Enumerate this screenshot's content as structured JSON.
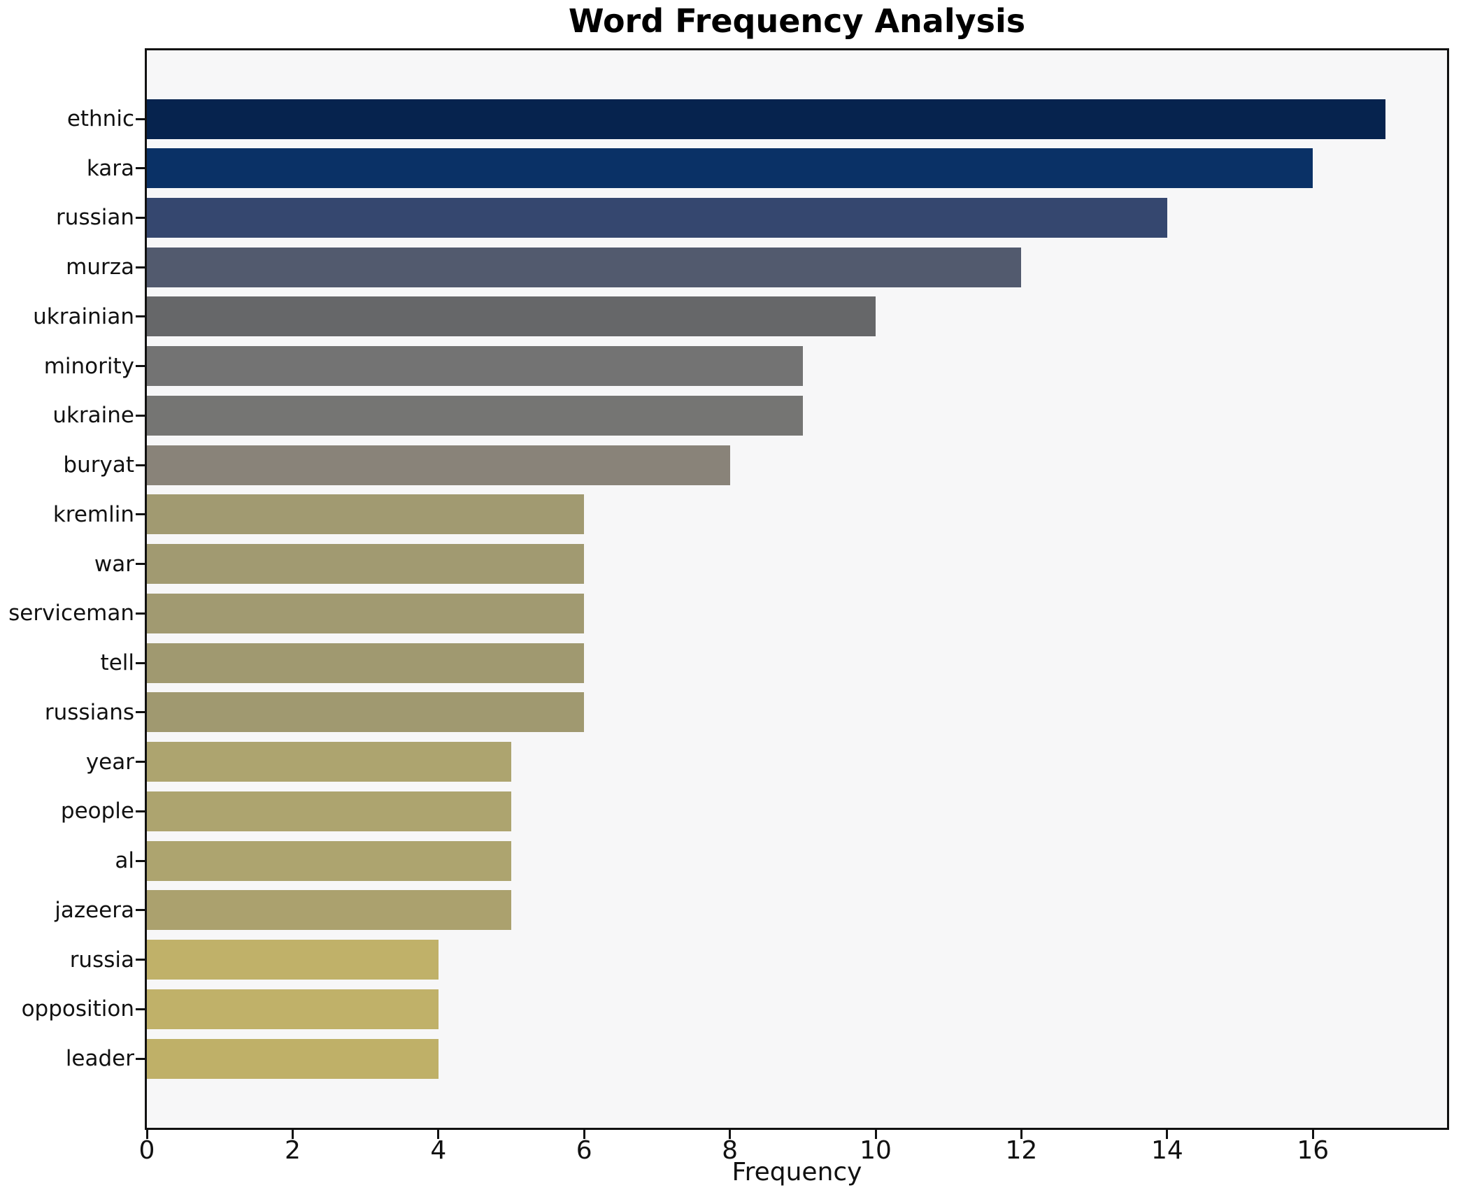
{
  "chart_data": {
    "type": "bar",
    "orientation": "horizontal",
    "title": "Word Frequency Analysis",
    "xlabel": "Frequency",
    "ylabel": "",
    "categories": [
      "ethnic",
      "kara",
      "russian",
      "murza",
      "ukrainian",
      "minority",
      "ukraine",
      "buryat",
      "kremlin",
      "war",
      "serviceman",
      "tell",
      "russians",
      "year",
      "people",
      "al",
      "jazeera",
      "russia",
      "opposition",
      "leader"
    ],
    "values": [
      17,
      16,
      14,
      12,
      10,
      9,
      9,
      8,
      6,
      6,
      6,
      6,
      6,
      5,
      5,
      5,
      5,
      4,
      4,
      4
    ],
    "bar_colors": [
      "#06234e",
      "#0a3166",
      "#35476f",
      "#525a6e",
      "#666769",
      "#737373",
      "#757573",
      "#898379",
      "#a19a71",
      "#a19a71",
      "#a19a71",
      "#a09970",
      "#a09970",
      "#ada46f",
      "#ada46f",
      "#ada46f",
      "#aba16e",
      "#c0b169",
      "#c0b169",
      "#bfb068"
    ],
    "xlim": [
      0,
      17.84
    ],
    "xticks": [
      0,
      2,
      4,
      6,
      8,
      10,
      12,
      14,
      16
    ],
    "grid": false,
    "legend": null,
    "plot_background": "#f7f7f8",
    "figure_background": "#ffffff",
    "spine_color": "#111111"
  }
}
